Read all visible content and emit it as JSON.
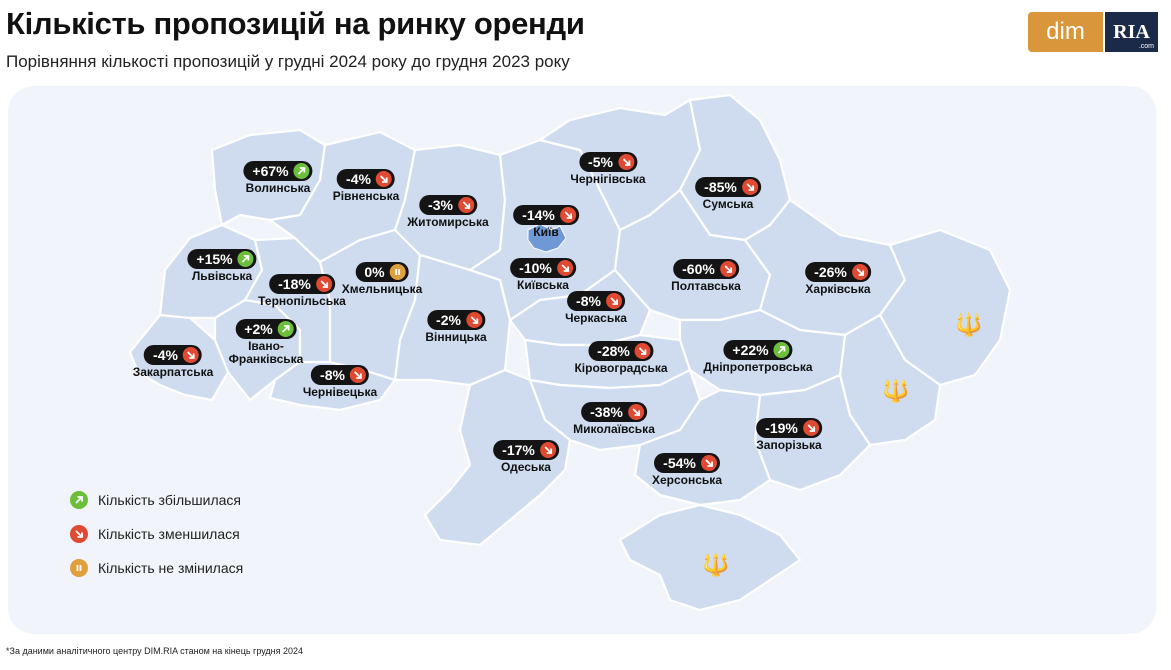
{
  "title": "Кількість пропозицій на ринку оренди",
  "subtitle": "Порівняння кількості пропозицій у грудні 2024 року до грудня 2023 року",
  "logo": {
    "left": "dim",
    "right": "RIA",
    "right_small": ".com"
  },
  "colors": {
    "up": "#6cbf3a",
    "down": "#e04a33",
    "same": "#e0a03c",
    "region_fill": "#cfdcf0",
    "badge": "#141414"
  },
  "regions": [
    {
      "name": "Волинська",
      "value": "+67%",
      "trend": "up"
    },
    {
      "name": "Рівненська",
      "value": "-4%",
      "trend": "down"
    },
    {
      "name": "Житомирська",
      "value": "-3%",
      "trend": "down"
    },
    {
      "name": "Чернігівська",
      "value": "-5%",
      "trend": "down"
    },
    {
      "name": "Сумська",
      "value": "-85%",
      "trend": "down"
    },
    {
      "name": "Київ",
      "value": "-14%",
      "trend": "down"
    },
    {
      "name": "Львівська",
      "value": "+15%",
      "trend": "up"
    },
    {
      "name": "Тернопільська",
      "value": "-18%",
      "trend": "down"
    },
    {
      "name": "Хмельницька",
      "value": "0%",
      "trend": "same"
    },
    {
      "name": "Київська",
      "value": "-10%",
      "trend": "down"
    },
    {
      "name": "Полтавська",
      "value": "-60%",
      "trend": "down"
    },
    {
      "name": "Харківська",
      "value": "-26%",
      "trend": "down"
    },
    {
      "name": "Черкаська",
      "value": "-8%",
      "trend": "down"
    },
    {
      "name": "Вінницька",
      "value": "-2%",
      "trend": "down"
    },
    {
      "name": "Івано-\nФранківська",
      "value": "+2%",
      "trend": "up"
    },
    {
      "name": "Закарпатська",
      "value": "-4%",
      "trend": "down"
    },
    {
      "name": "Чернівецька",
      "value": "-8%",
      "trend": "down"
    },
    {
      "name": "Кіровоградська",
      "value": "-28%",
      "trend": "down"
    },
    {
      "name": "Дніпропетровська",
      "value": "+22%",
      "trend": "up"
    },
    {
      "name": "Миколаївська",
      "value": "-38%",
      "trend": "down"
    },
    {
      "name": "Запорізька",
      "value": "-19%",
      "trend": "down"
    },
    {
      "name": "Одеська",
      "value": "-17%",
      "trend": "down"
    },
    {
      "name": "Херсонська",
      "value": "-54%",
      "trend": "down"
    }
  ],
  "legend": [
    {
      "label": "Кількість збільшилася",
      "trend": "up"
    },
    {
      "label": "Кількість зменшилася",
      "trend": "down"
    },
    {
      "label": "Кількість не змінилася",
      "trend": "same"
    }
  ],
  "footnote": "*За даними аналітичного центру DIM.RIA станом на кінець грудня 2024",
  "icons": {
    "up": "arrow-up-right-icon",
    "down": "arrow-down-right-icon",
    "same": "pause-icon",
    "emblem": "trident-icon"
  }
}
